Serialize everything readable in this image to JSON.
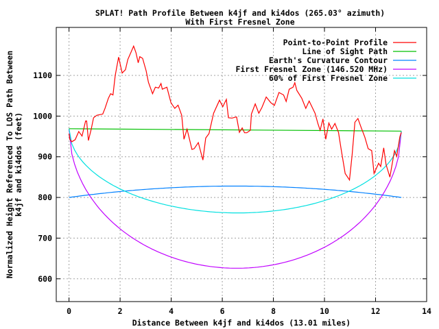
{
  "chart_data": {
    "type": "line",
    "title": "SPLAT! Path Profile Between k4jf and ki4dos (265.03° azimuth)",
    "subtitle": "With First Fresnel Zone",
    "xlabel": "Distance Between k4jf and ki4dos (13.01 miles)",
    "ylabel": [
      "Normalized Height Referenced To LOS Path Between",
      "k4jf and ki4dos (feet)"
    ],
    "xlim": [
      -0.5,
      14
    ],
    "ylim": [
      544,
      1218
    ],
    "xticks": [
      0,
      2,
      4,
      6,
      8,
      10,
      12,
      14
    ],
    "yticks": [
      600,
      700,
      800,
      900,
      1000,
      1100
    ],
    "grid": true,
    "legend_position": "top-right",
    "path_length_miles": 13.01,
    "series": [
      {
        "name": "Point-to-Point Profile",
        "color": "#ff0000",
        "x": [
          0,
          0.03,
          0.11,
          0.24,
          0.38,
          0.51,
          0.65,
          0.69,
          0.76,
          0.87,
          0.96,
          1.09,
          1.32,
          1.41,
          1.54,
          1.63,
          1.72,
          1.81,
          1.94,
          2.08,
          2.21,
          2.3,
          2.44,
          2.53,
          2.62,
          2.71,
          2.77,
          2.88,
          3.02,
          3.11,
          3.27,
          3.38,
          3.51,
          3.6,
          3.65,
          3.83,
          3.99,
          4.14,
          4.27,
          4.41,
          4.5,
          4.62,
          4.81,
          4.9,
          5.06,
          5.24,
          5.35,
          5.48,
          5.66,
          5.89,
          6.02,
          6.16,
          6.24,
          6.38,
          6.56,
          6.67,
          6.78,
          6.87,
          6.96,
          7.1,
          7.14,
          7.29,
          7.43,
          7.55,
          7.72,
          7.9,
          8.04,
          8.22,
          8.4,
          8.5,
          8.62,
          8.77,
          8.84,
          8.92,
          9.11,
          9.27,
          9.4,
          9.63,
          9.74,
          9.83,
          9.94,
          10.05,
          10.17,
          10.28,
          10.41,
          10.55,
          10.65,
          10.81,
          10.98,
          11.08,
          11.19,
          11.31,
          11.44,
          11.58,
          11.71,
          11.85,
          11.94,
          12.12,
          12.2,
          12.32,
          12.41,
          12.56,
          12.74,
          12.83,
          12.95,
          13.01
        ],
        "y": [
          957,
          943,
          937,
          942,
          962,
          951,
          988,
          988,
          940,
          968,
          996,
          1002,
          1005,
          1019,
          1044,
          1055,
          1052,
          1100,
          1145,
          1106,
          1114,
          1139,
          1159,
          1172,
          1156,
          1131,
          1146,
          1142,
          1111,
          1083,
          1055,
          1071,
          1069,
          1080,
          1066,
          1071,
          1033,
          1019,
          1027,
          1002,
          943,
          968,
          918,
          920,
          935,
          892,
          946,
          957,
          1007,
          1039,
          1023,
          1041,
          996,
          995,
          998,
          960,
          971,
          959,
          959,
          965,
          1005,
          1030,
          1007,
          1021,
          1047,
          1033,
          1026,
          1058,
          1052,
          1036,
          1066,
          1071,
          1082,
          1063,
          1044,
          1019,
          1037,
          1007,
          982,
          965,
          993,
          943,
          983,
          968,
          982,
          960,
          920,
          859,
          843,
          904,
          985,
          994,
          971,
          948,
          920,
          915,
          859,
          884,
          876,
          922,
          881,
          850,
          915,
          901,
          949,
          960
        ]
      },
      {
        "name": "Line of Sight Path",
        "color": "#00c000",
        "x": [
          0,
          13.01
        ],
        "y": [
          969,
          963
        ]
      },
      {
        "name": "Earth's Curvature Contour",
        "color": "#0080ff",
        "edge_ft": 800,
        "midpoint_ft": 828
      },
      {
        "name": "First Fresnel Zone (146.520 MHz)",
        "color": "#c000ff",
        "max_radius_ft": 340
      },
      {
        "name": "60% of First Fresnel Zone",
        "color": "#00e0e0",
        "fraction": 0.6
      }
    ]
  }
}
